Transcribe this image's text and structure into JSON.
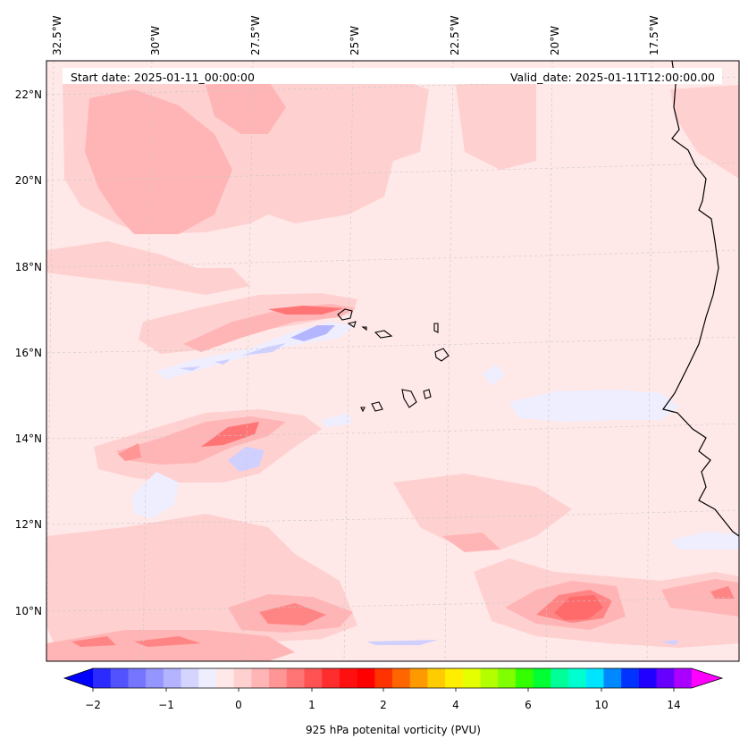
{
  "header": {
    "start_date": "Start date: 2025-01-11_00:00:00",
    "valid_date": "Valid_date: 2025-01-11T12:00:00.00"
  },
  "longitude_labels": [
    "32.5°W",
    "30°W",
    "27.5°W",
    "25°W",
    "22.5°W",
    "20°W",
    "17.5°W"
  ],
  "latitude_labels": [
    "22°N",
    "20°N",
    "18°N",
    "16°N",
    "14°N",
    "12°N",
    "10°N"
  ],
  "colorbar": {
    "title": "925 hPa potenital vorticity (PVU)",
    "tick_labels": [
      "−2",
      "−1",
      "0",
      "1",
      "2",
      "4",
      "6",
      "10",
      "14"
    ],
    "colors": [
      "#0000ff",
      "#2b2bff",
      "#5252ff",
      "#7575ff",
      "#9595ff",
      "#b3b3ff",
      "#d4d4ff",
      "#eeeeff",
      "#ffe8e8",
      "#ffd0d0",
      "#ffb5b5",
      "#ff9595",
      "#ff7575",
      "#ff5353",
      "#ff2e2e",
      "#ff1010",
      "#ff0000",
      "#ff3300",
      "#ff6600",
      "#ff9900",
      "#ffcc00",
      "#ffee00",
      "#e6ff00",
      "#b3ff00",
      "#80ff00",
      "#33ff00",
      "#00ff33",
      "#00ff99",
      "#00ffd0",
      "#00e5ff",
      "#0088ff",
      "#0033ff",
      "#2200ff",
      "#6600ff",
      "#aa00ff",
      "#ff00ff"
    ]
  },
  "colors": {
    "background_pv": "#ffe8e8",
    "light_pink": "#ffd0d0",
    "pink": "#ffb5b5",
    "medium_red": "#ff8585",
    "red": "#ff6a6a",
    "light_blue": "#eeeeff",
    "blue": "#d0d0ff",
    "deep_blue": "#a8a8ff"
  }
}
